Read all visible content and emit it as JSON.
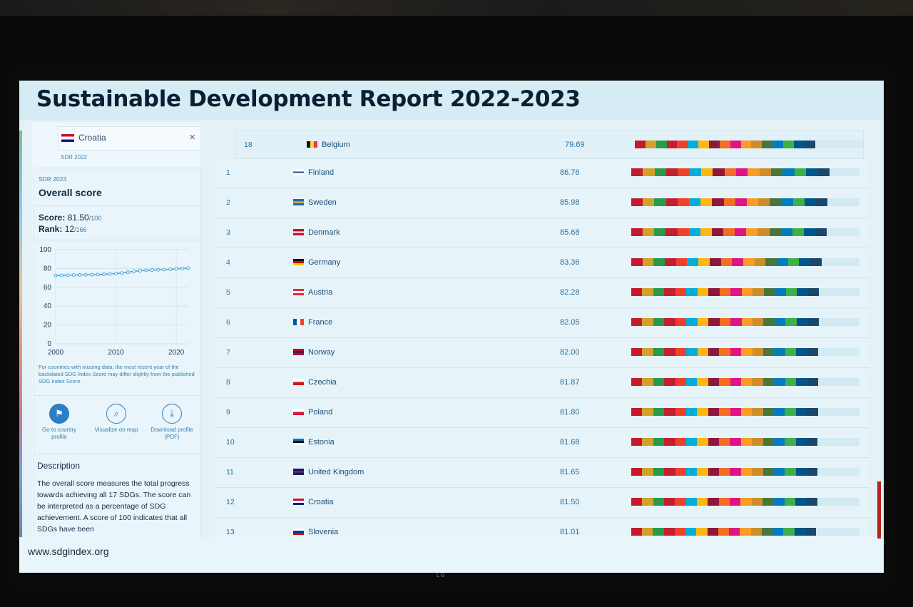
{
  "slide": {
    "title": "Sustainable Development Report 2022-2023",
    "footer_url": "www.sdgindex.org",
    "tv_brand": "LG"
  },
  "sidebar": {
    "search_country": "Croatia",
    "close_symbol": "×",
    "sdr_prev": "SDR 2022",
    "sdr_current": "SDR 2023",
    "heading": "Overall score",
    "score_label": "Score:",
    "score_value": "81.50",
    "score_max": "/100",
    "rank_label": "Rank:",
    "rank_value": "12",
    "rank_max": "/166",
    "note": "For countries with missing data, the most recent year of the backdated SDG Index Score may differ slightly from the published SDG Index Score.",
    "actions": [
      {
        "label": "Go to country profile",
        "icon": "flag-icon"
      },
      {
        "label": "Visualize on map",
        "icon": "map-search-icon"
      },
      {
        "label": "Download profile (PDF)",
        "icon": "download-icon"
      }
    ],
    "description_heading": "Description",
    "description": "The overall score measures the total progress towards achieving all 17 SDGs. The score can be interpreted as a percentage of SDG achievement. A score of 100 indicates that all SDGs have been"
  },
  "chart_data": {
    "type": "line",
    "x": [
      2000,
      2001,
      2002,
      2003,
      2004,
      2005,
      2006,
      2007,
      2008,
      2009,
      2010,
      2011,
      2012,
      2013,
      2014,
      2015,
      2016,
      2017,
      2018,
      2019,
      2020,
      2021,
      2022
    ],
    "series": [
      {
        "values": [
          72.5,
          72.6,
          72.8,
          73.0,
          73.1,
          73.2,
          73.4,
          73.6,
          73.9,
          74.2,
          74.6,
          75.2,
          76.0,
          77.0,
          77.6,
          78.0,
          78.3,
          78.6,
          78.9,
          79.2,
          79.6,
          80.0,
          80.3
        ]
      }
    ],
    "ylim": [
      0,
      100
    ],
    "yticks": [
      "100",
      "80",
      "60",
      "40",
      "20",
      "0"
    ],
    "xticks": [
      "2000",
      "2010",
      "2020"
    ],
    "accent": "#4aa3d8"
  },
  "sdg_colors": [
    "#c5192d",
    "#d3a029",
    "#279b48",
    "#c31f33",
    "#ef402b",
    "#00aed9",
    "#fdb713",
    "#8f1838",
    "#f36d25",
    "#e11484",
    "#f99d26",
    "#cf8d2a",
    "#48773e",
    "#007dbc",
    "#3eb049",
    "#02558b",
    "#19486a"
  ],
  "table": {
    "pinned": {
      "rank": "18",
      "country": "Belgium",
      "score": "79.69",
      "progress": 0.79,
      "flag": "be"
    },
    "rows": [
      {
        "rank": "1",
        "country": "Finland",
        "score": "86.76",
        "progress": 0.868,
        "flag": "fi"
      },
      {
        "rank": "2",
        "country": "Sweden",
        "score": "85.98",
        "progress": 0.86,
        "flag": "se"
      },
      {
        "rank": "3",
        "country": "Denmark",
        "score": "85.68",
        "progress": 0.857,
        "flag": "dk"
      },
      {
        "rank": "4",
        "country": "Germany",
        "score": "83.36",
        "progress": 0.834,
        "flag": "de"
      },
      {
        "rank": "5",
        "country": "Austria",
        "score": "82.28",
        "progress": 0.823,
        "flag": "at"
      },
      {
        "rank": "6",
        "country": "France",
        "score": "82.05",
        "progress": 0.821,
        "flag": "fr"
      },
      {
        "rank": "7",
        "country": "Norway",
        "score": "82.00",
        "progress": 0.82,
        "flag": "no"
      },
      {
        "rank": "8",
        "country": "Czechia",
        "score": "81.87",
        "progress": 0.819,
        "flag": "cz"
      },
      {
        "rank": "9",
        "country": "Poland",
        "score": "81.80",
        "progress": 0.818,
        "flag": "pl"
      },
      {
        "rank": "10",
        "country": "Estonia",
        "score": "81.68",
        "progress": 0.817,
        "flag": "ee"
      },
      {
        "rank": "11",
        "country": "United Kingdom",
        "score": "81.65",
        "progress": 0.817,
        "flag": "gb"
      },
      {
        "rank": "12",
        "country": "Croatia",
        "score": "81.50",
        "progress": 0.815,
        "flag": "hr"
      },
      {
        "rank": "13",
        "country": "Slovenia",
        "score": "81.01",
        "progress": 0.81,
        "flag": "si"
      }
    ]
  }
}
